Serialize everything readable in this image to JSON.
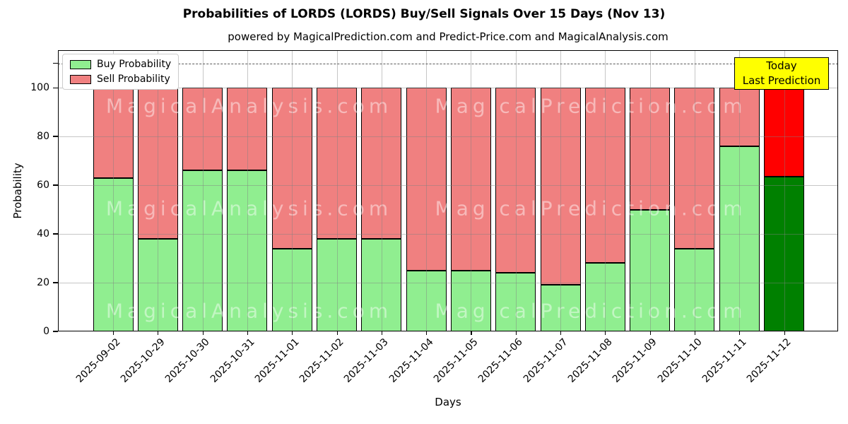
{
  "title": "Probabilities of LORDS (LORDS) Buy/Sell Signals Over 15 Days (Nov 13)",
  "subtitle": "powered by MagicalPrediction.com and Predict-Price.com and MagicalAnalysis.com",
  "legend": {
    "buy": "Buy Probability",
    "sell": "Sell Probability"
  },
  "annotation": {
    "line1": "Today",
    "line2": "Last Prediction"
  },
  "axes": {
    "ylabel": "Probability",
    "xlabel": "Days",
    "yticks": [
      0,
      20,
      40,
      60,
      80,
      100
    ],
    "ylim": [
      0,
      115.4
    ],
    "dashed_line_y": 110,
    "grid": "on",
    "legend_position": "upper left"
  },
  "watermarks": [
    "MagicalAnalysis.com",
    "MagicalPrediction.com"
  ],
  "colors": {
    "buy": "#90EE90",
    "sell": "#F08080",
    "last_bar_buy": "#008000",
    "last_bar_sell": "#FF0000",
    "annotation_bg": "#FFFF00",
    "bar_edge": "#000000"
  },
  "chart_data": {
    "type": "bar",
    "stacked": true,
    "title": "Probabilities of LORDS (LORDS) Buy/Sell Signals Over 15 Days (Nov 13)",
    "xlabel": "Days",
    "ylabel": "Probability",
    "ylim": [
      0,
      115.4
    ],
    "categories": [
      "2025-09-02",
      "2025-10-29",
      "2025-10-30",
      "2025-10-31",
      "2025-11-01",
      "2025-11-02",
      "2025-11-03",
      "2025-11-04",
      "2025-11-05",
      "2025-11-06",
      "2025-11-07",
      "2025-11-08",
      "2025-11-09",
      "2025-11-10",
      "2025-11-11",
      "2025-11-12"
    ],
    "series": [
      {
        "name": "Buy Probability",
        "values": [
          63,
          38,
          66,
          66,
          34,
          38,
          38,
          25,
          25,
          24,
          19,
          28,
          50,
          34,
          76,
          63.5
        ]
      },
      {
        "name": "Sell Probability",
        "values": [
          37,
          62,
          34,
          34,
          66,
          62,
          62,
          75,
          75,
          76,
          81,
          72,
          50,
          66,
          24,
          36.5
        ]
      }
    ],
    "last_bar_highlighted": true
  }
}
